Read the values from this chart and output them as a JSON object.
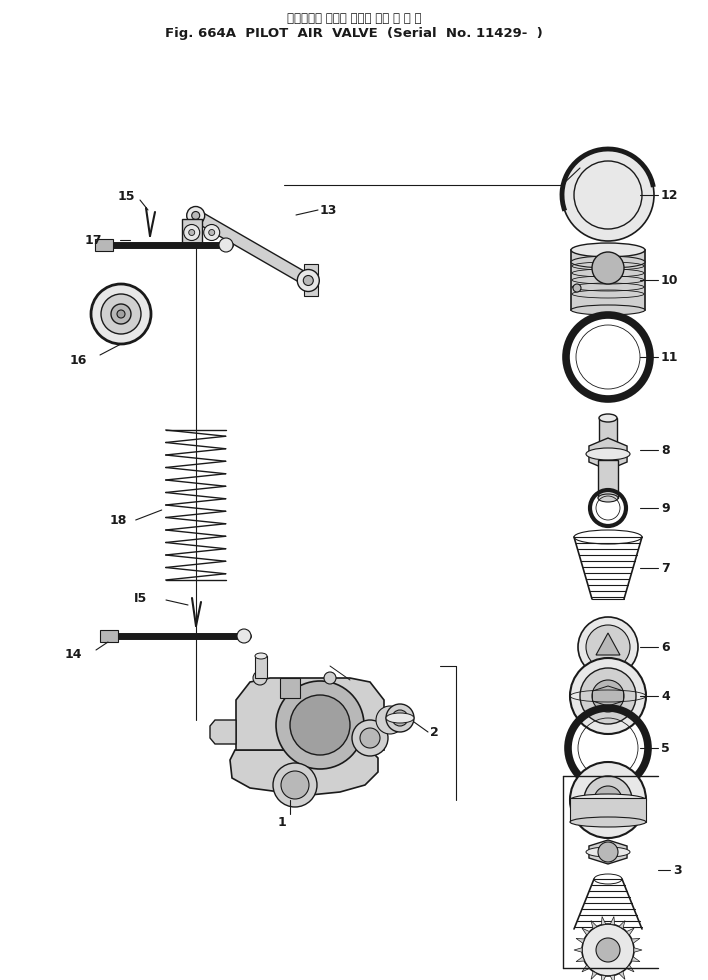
{
  "title_line1": "パイロット エアー バルブ （適 用 号 機",
  "title_line2": "Fig. 664A  PILOT  AIR  VALVE  (Serial  No. 11429-  )",
  "bg_color": "#ffffff",
  "fg_color": "#1a1a1a"
}
